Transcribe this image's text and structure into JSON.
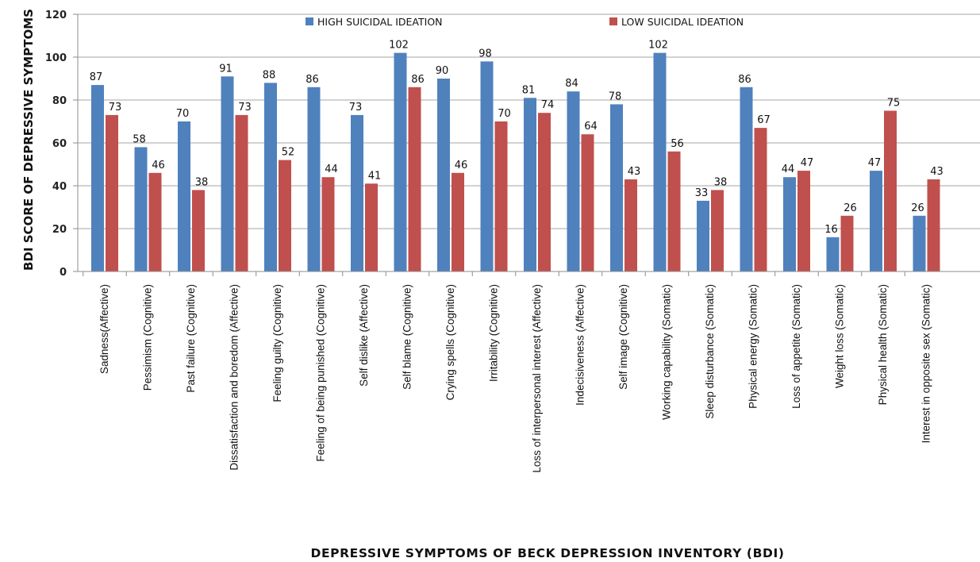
{
  "chart_data": {
    "type": "bar",
    "title": "",
    "xlabel": "DEPRESSIVE SYMPTOMS OF BECK DEPRESSION INVENTORY (BDI)",
    "ylabel": "BDI SCORE OF DEPRESSIVE SYMPTOMS",
    "ylim": [
      0,
      120
    ],
    "yticks": [
      0,
      20,
      40,
      60,
      80,
      100,
      120
    ],
    "grid": true,
    "legend_position": "top",
    "categories": [
      "Sadness(Affective)",
      "Pessimism (Cognitive)",
      "Past failure (Cognitive)",
      "Dissatisfaction  and boredom (Affective)",
      "Feeling guilty (Cognitive)",
      "Feeling of being punished (Cognitive)",
      "Self dislike (Affective)",
      "Self blame (Cognitive)",
      "Crying spells (Cognitive)",
      "Irritability (Cognitive)",
      "Loss of interpersonal interest (Affective)",
      "Indecisiveness (Affective)",
      "Self image (Cognitive)",
      "Working capability  (Somatic)",
      "Sleep disturbance (Somatic)",
      "Physical energy (Somatic)",
      "Loss of appetite (Somatic)",
      "Weight loss (Somatic)",
      "Physical health (Somatic)",
      "Interest in opposite sex (Somatic)"
    ],
    "series": [
      {
        "name": "HIGH SUICIDAL  IDEATION",
        "color": "#4f81bd",
        "values": [
          87,
          58,
          70,
          91,
          88,
          86,
          73,
          102,
          90,
          98,
          81,
          84,
          78,
          102,
          33,
          86,
          44,
          16,
          47,
          26
        ]
      },
      {
        "name": "LOW SUICIDAL IDEATION",
        "color": "#c0504d",
        "values": [
          73,
          46,
          38,
          73,
          52,
          44,
          41,
          86,
          46,
          70,
          74,
          64,
          43,
          56,
          38,
          67,
          47,
          26,
          75,
          43
        ]
      }
    ]
  }
}
